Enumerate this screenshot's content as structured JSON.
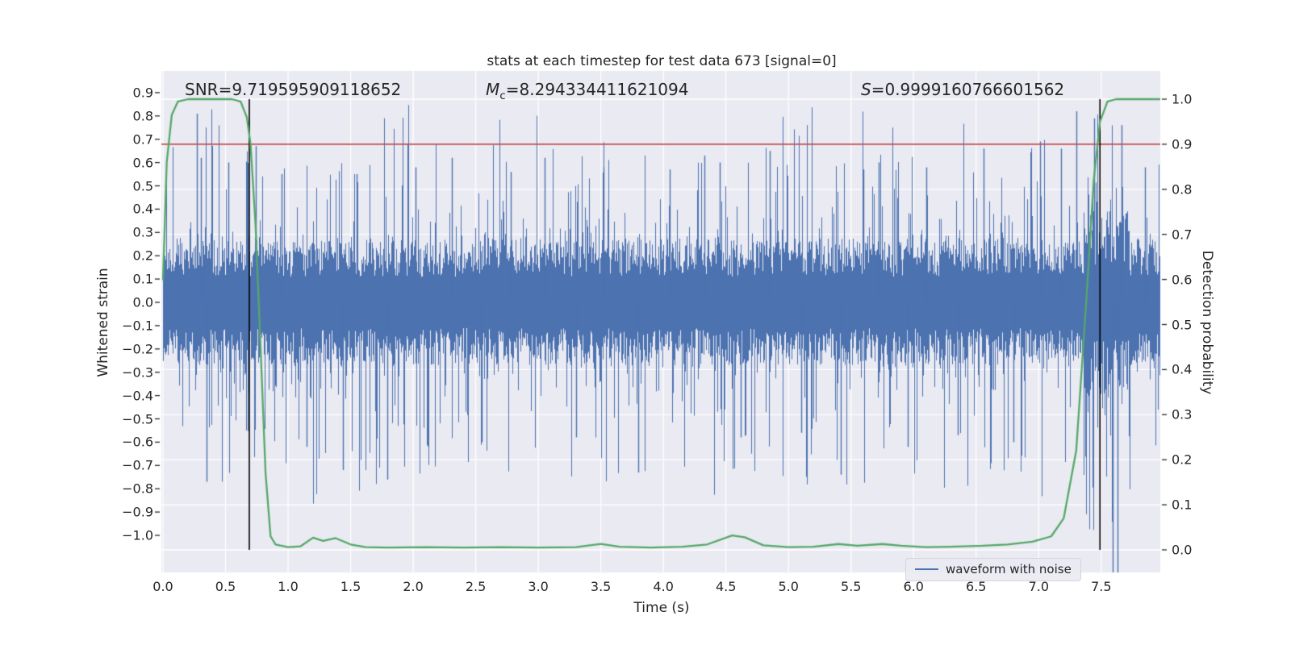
{
  "figure": {
    "background": "#ffffff",
    "text_color": "#262626"
  },
  "chart_data": {
    "type": "line",
    "title": "stats at each timestep for test data 673 [signal=0]",
    "xlabel": "Time (s)",
    "ylabel_left": "Whitened strain",
    "ylabel_right": "Detection probability",
    "xlim": [
      0,
      7.972
    ],
    "ylim_left": [
      -1.163,
      0.99
    ],
    "ylim_right": [
      -0.052,
      1.061
    ],
    "xticks": [
      0.0,
      0.5,
      1.0,
      1.5,
      2.0,
      2.5,
      3.0,
      3.5,
      4.0,
      4.5,
      5.0,
      5.5,
      6.0,
      6.5,
      7.0,
      7.5
    ],
    "yticks_left": [
      -1.0,
      -0.9,
      -0.8,
      -0.7,
      -0.6,
      -0.5,
      -0.4,
      -0.3,
      -0.2,
      -0.1,
      0.0,
      0.1,
      0.2,
      0.3,
      0.4,
      0.5,
      0.6,
      0.7,
      0.8,
      0.9
    ],
    "yticks_right": [
      0.0,
      0.1,
      0.2,
      0.3,
      0.4,
      0.5,
      0.6,
      0.7,
      0.8,
      0.9,
      1.0
    ],
    "grid": true,
    "plot_bg": "#eaeaf2",
    "grid_color": "#ffffff",
    "annotations": {
      "equals": "=",
      "snr": {
        "label": "SNR",
        "value": "9.719595909118652"
      },
      "mc": {
        "symbol": "M",
        "subscript": "c",
        "value": "8.294334411621094"
      },
      "s": {
        "symbol": "S",
        "value": "0.9999160766601562"
      }
    },
    "legend": {
      "label": "waveform with noise",
      "color": "#4c72b0",
      "position": "lower right"
    },
    "series": [
      {
        "name": "waveform with noise",
        "kind": "noise-band",
        "axis": "left",
        "color": "#4c72b0",
        "noise_params": {
          "seed": 1337,
          "base_min": 0.11,
          "base_range": 0.16,
          "tail_scale": 0.62,
          "tail_power": 9,
          "burst_t_start": 7.36,
          "burst_t_end": 7.72,
          "burst_gain": 1.45
        },
        "feature_spikes": [
          {
            "t": 0.27,
            "s": 0.81
          },
          {
            "t": 0.3,
            "s": 0.62
          },
          {
            "t": 0.35,
            "s": -0.77
          },
          {
            "t": 0.52,
            "s": 0.6
          },
          {
            "t": 0.74,
            "s": 0.67
          },
          {
            "t": 0.95,
            "s": 0.55
          },
          {
            "t": 1.15,
            "s": -0.62
          },
          {
            "t": 1.44,
            "s": -0.72
          },
          {
            "t": 1.55,
            "s": 0.55
          },
          {
            "t": 1.79,
            "s": -0.76
          },
          {
            "t": 2.02,
            "s": 0.58
          },
          {
            "t": 2.31,
            "s": 0.62
          },
          {
            "t": 2.55,
            "s": -0.6
          },
          {
            "t": 2.78,
            "s": 0.56
          },
          {
            "t": 3.05,
            "s": 0.62
          },
          {
            "t": 3.3,
            "s": -0.58
          },
          {
            "t": 3.52,
            "s": 0.58
          },
          {
            "t": 3.8,
            "s": -0.73
          },
          {
            "t": 4.05,
            "s": 0.57
          },
          {
            "t": 4.33,
            "s": 0.63
          },
          {
            "t": 4.45,
            "s": 0.6
          },
          {
            "t": 4.62,
            "s": -0.58
          },
          {
            "t": 4.85,
            "s": 0.65
          },
          {
            "t": 5.1,
            "s": -0.56
          },
          {
            "t": 5.42,
            "s": -0.74
          },
          {
            "t": 5.6,
            "s": 0.57
          },
          {
            "t": 5.72,
            "s": 0.6
          },
          {
            "t": 5.95,
            "s": -0.62
          },
          {
            "t": 6.1,
            "s": 0.58
          },
          {
            "t": 6.35,
            "s": -0.57
          },
          {
            "t": 6.56,
            "s": 0.66
          },
          {
            "t": 6.8,
            "s": -0.6
          },
          {
            "t": 7.01,
            "s": 0.69
          },
          {
            "t": 7.18,
            "s": 0.66
          },
          {
            "t": 7.3,
            "s": 0.82
          },
          {
            "t": 7.44,
            "s": 0.79
          },
          {
            "t": 7.59,
            "s": -1.16
          },
          {
            "t": 7.63,
            "s": -1.16
          },
          {
            "t": 7.66,
            "s": 0.76
          },
          {
            "t": 7.85,
            "s": 0.58
          }
        ]
      },
      {
        "name": "detection probability",
        "kind": "line",
        "axis": "right",
        "color": "#55a868",
        "points": [
          [
            0.0,
            0.6
          ],
          [
            0.03,
            0.86
          ],
          [
            0.07,
            0.965
          ],
          [
            0.12,
            0.995
          ],
          [
            0.2,
            1.0
          ],
          [
            0.55,
            1.0
          ],
          [
            0.62,
            0.995
          ],
          [
            0.67,
            0.96
          ],
          [
            0.7,
            0.9
          ],
          [
            0.74,
            0.72
          ],
          [
            0.78,
            0.45
          ],
          [
            0.82,
            0.17
          ],
          [
            0.86,
            0.03
          ],
          [
            0.9,
            0.012
          ],
          [
            1.0,
            0.006
          ],
          [
            1.1,
            0.008
          ],
          [
            1.2,
            0.027
          ],
          [
            1.28,
            0.02
          ],
          [
            1.38,
            0.026
          ],
          [
            1.5,
            0.012
          ],
          [
            1.62,
            0.006
          ],
          [
            1.8,
            0.005
          ],
          [
            2.1,
            0.006
          ],
          [
            2.4,
            0.005
          ],
          [
            2.7,
            0.006
          ],
          [
            3.0,
            0.005
          ],
          [
            3.3,
            0.006
          ],
          [
            3.5,
            0.013
          ],
          [
            3.65,
            0.007
          ],
          [
            3.9,
            0.005
          ],
          [
            4.15,
            0.007
          ],
          [
            4.35,
            0.012
          ],
          [
            4.55,
            0.032
          ],
          [
            4.65,
            0.028
          ],
          [
            4.8,
            0.01
          ],
          [
            5.0,
            0.006
          ],
          [
            5.2,
            0.007
          ],
          [
            5.4,
            0.013
          ],
          [
            5.55,
            0.009
          ],
          [
            5.75,
            0.013
          ],
          [
            5.9,
            0.009
          ],
          [
            6.1,
            0.006
          ],
          [
            6.3,
            0.007
          ],
          [
            6.55,
            0.009
          ],
          [
            6.75,
            0.012
          ],
          [
            6.95,
            0.018
          ],
          [
            7.1,
            0.03
          ],
          [
            7.2,
            0.07
          ],
          [
            7.3,
            0.22
          ],
          [
            7.38,
            0.55
          ],
          [
            7.44,
            0.82
          ],
          [
            7.49,
            0.95
          ],
          [
            7.55,
            0.995
          ],
          [
            7.62,
            1.0
          ],
          [
            7.972,
            1.0
          ]
        ]
      },
      {
        "name": "detection threshold",
        "kind": "hline",
        "axis": "right",
        "color": "#c44e52",
        "y": 0.9
      },
      {
        "name": "marker lines",
        "kind": "vlines",
        "axis": "right",
        "color": "#000000",
        "x": [
          0.69,
          7.49
        ],
        "span": [
          0.0,
          1.0
        ]
      }
    ]
  }
}
